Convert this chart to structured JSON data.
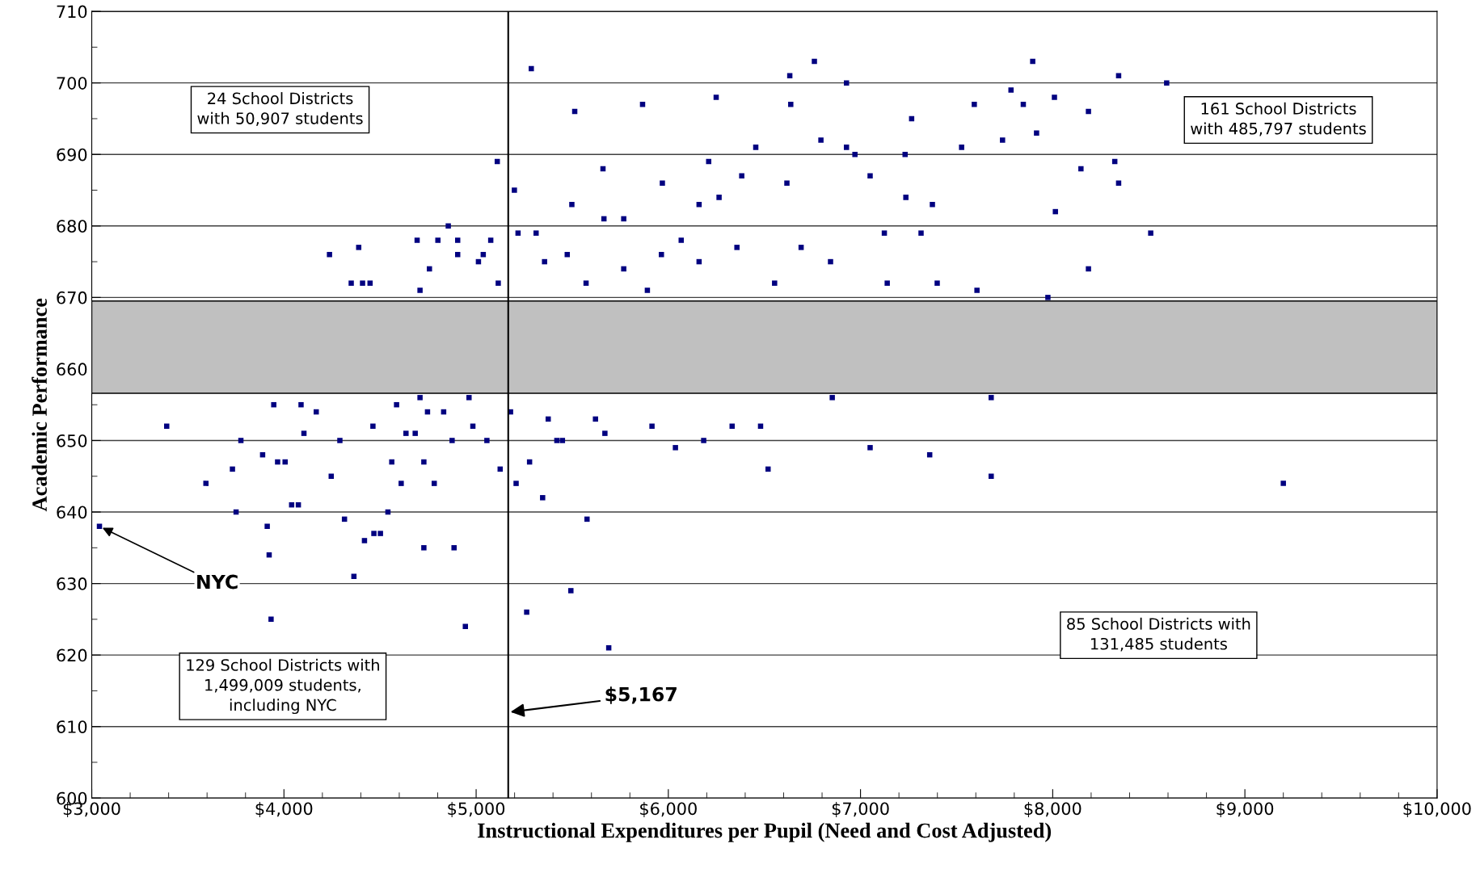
{
  "chart_data": {
    "type": "scatter",
    "xlabel": "Instructional Expenditures per Pupil (Need and Cost Adjusted)",
    "ylabel": "Academic Performance",
    "xlim": [
      3000,
      10000
    ],
    "ylim": [
      600,
      710
    ],
    "xticks": [
      {
        "value": 3000,
        "label": "$3,000"
      },
      {
        "value": 4000,
        "label": "$4,000"
      },
      {
        "value": 5000,
        "label": "$5,000"
      },
      {
        "value": 6000,
        "label": "$6,000"
      },
      {
        "value": 7000,
        "label": "$7,000"
      },
      {
        "value": 8000,
        "label": "$8,000"
      },
      {
        "value": 9000,
        "label": "$9,000"
      },
      {
        "value": 10000,
        "label": "$10,000"
      }
    ],
    "yticks": [
      600,
      610,
      620,
      630,
      640,
      650,
      660,
      670,
      680,
      690,
      700,
      710
    ],
    "grid": "y",
    "marker": "square",
    "series": [
      {
        "color": "#000080",
        "x": [
          3040,
          3390,
          3594,
          3732,
          3751,
          3776,
          3889,
          3913,
          3923,
          3933,
          3947,
          3967,
          4006,
          4040,
          4075,
          4089,
          4104,
          4168,
          4237,
          4246,
          4315,
          4350,
          4364,
          4389,
          4409,
          4419,
          4448,
          4468,
          4502,
          4541,
          4586,
          4610,
          4693,
          4708,
          4728,
          4728,
          4757,
          4801,
          4831,
          4855,
          4885,
          4904,
          4904,
          4944,
          4963,
          5012,
          5037,
          5076,
          5110,
          5115,
          5199,
          5218,
          5263,
          5287,
          5312,
          5356,
          5493,
          5513,
          5498,
          5577,
          5660,
          5690,
          5665,
          5768,
          5866,
          5891,
          5969,
          6067,
          6160,
          6210,
          6249,
          6264,
          6382,
          6455,
          6480,
          6519,
          6617,
          6632,
          6637,
          6691,
          6760,
          6794,
          6853,
          6927,
          6927,
          6971,
          7050,
          7050,
          7124,
          7232,
          7266,
          7315,
          7360,
          7399,
          7526,
          7592,
          7606,
          7680,
          7680,
          7739,
          7783,
          7847,
          7896,
          7916,
          7975,
          8009,
          8014,
          8147,
          8186,
          8186,
          8323,
          8343,
          8343,
          8510,
          8593,
          9200,
          4635,
          4747,
          4875,
          4983,
          5056,
          5179,
          5278,
          5375,
          5449,
          5621,
          5670,
          5915,
          6037,
          6184,
          6332,
          5474,
          5572,
          5768,
          5964,
          6160,
          6357,
          6553,
          6844,
          7139,
          7236,
          7374,
          4291,
          4463,
          4561,
          4683,
          4782,
          5125,
          5208,
          5346,
          5420,
          4708
        ],
        "values": [
          638,
          652,
          644,
          646,
          640,
          650,
          648,
          638,
          634,
          625,
          655,
          647,
          647,
          641,
          641,
          655,
          651,
          654,
          676,
          645,
          639,
          672,
          631,
          677,
          672,
          636,
          672,
          637,
          637,
          640,
          655,
          644,
          678,
          671,
          647,
          635,
          674,
          678,
          654,
          680,
          635,
          678,
          676,
          624,
          656,
          675,
          676,
          678,
          689,
          672,
          685,
          679,
          626,
          702,
          679,
          675,
          629,
          696,
          683,
          639,
          688,
          621,
          681,
          681,
          697,
          671,
          686,
          678,
          683,
          689,
          698,
          684,
          687,
          691,
          652,
          646,
          686,
          701,
          697,
          677,
          703,
          692,
          656,
          700,
          691,
          690,
          687,
          649,
          679,
          690,
          695,
          679,
          648,
          672,
          691,
          697,
          671,
          645,
          656,
          692,
          699,
          697,
          703,
          693,
          670,
          698,
          682,
          688,
          696,
          674,
          689,
          701,
          686,
          679,
          700,
          644,
          651,
          654,
          650,
          652,
          650,
          654,
          647,
          653,
          650,
          653,
          651,
          652,
          649,
          650,
          652,
          676,
          672,
          674,
          676,
          675,
          677,
          672,
          675,
          672,
          684,
          683,
          650,
          652,
          647,
          651,
          644,
          646,
          644,
          642,
          650,
          656
        ]
      }
    ],
    "bands": [
      {
        "axis": "y",
        "from": 656.6,
        "to": 669.5,
        "color": "#c0c0c0"
      }
    ],
    "ref_lines": [
      {
        "axis": "x",
        "value": 5167,
        "label": "$5,167",
        "color": "#000000"
      }
    ],
    "annotations": [
      "24 School Districts\nwith 50,907 students",
      "161 School Districts\nwith 485,797 students",
      "129 School Districts with\n1,499,009 students,\nincluding NYC",
      "85 School Districts with\n131,485 students",
      {
        "text": "NYC",
        "x": 3040,
        "y": 638
      }
    ]
  }
}
